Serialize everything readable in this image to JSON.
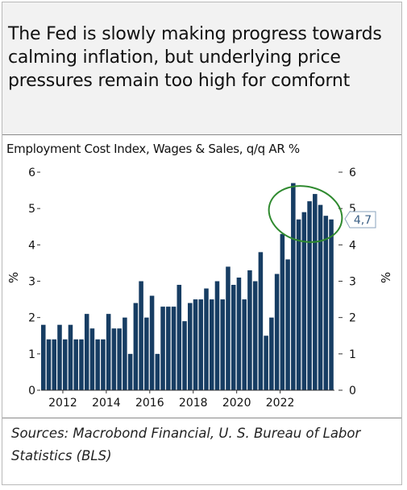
{
  "headline": "The Fed is slowly making progress towards calming inflation, but underlying price pressures remain too high for comfornt",
  "source": "Sources: Macrobond Financial, U. S. Bureau of Labor Statistics (BLS)",
  "colors": {
    "bar": "#173d63",
    "ellipse": "#2f8a2f",
    "header_bg": "#f2f2f2",
    "label_border": "#8aa3bd"
  },
  "chart_data": {
    "type": "bar",
    "title": "Employment Cost Index, Wages & Sales, q/q AR %",
    "ylabel": "%",
    "y2label": "%",
    "ylim": [
      0,
      6
    ],
    "yticks": [
      0,
      1,
      2,
      3,
      4,
      5,
      6
    ],
    "xticks": [
      "2012",
      "2014",
      "2016",
      "2018",
      "2020",
      "2022"
    ],
    "grid": false,
    "last_value_label": "4,7",
    "annotation": "green ellipse highlighting 2021-2022 bars",
    "series": [
      {
        "values": [
          1.8,
          1.4,
          1.4,
          1.8,
          1.4,
          1.8,
          1.4,
          1.4,
          2.1,
          1.7,
          1.4,
          1.4,
          2.1,
          1.7,
          1.7,
          2.0,
          1.0,
          2.4,
          3.0,
          2.0,
          2.6,
          1.0,
          2.3,
          2.3,
          2.3,
          2.9,
          1.9,
          2.4,
          2.5,
          2.5,
          2.8,
          2.5,
          3.0,
          2.5,
          3.4,
          2.9,
          3.1,
          2.5,
          3.3,
          3.0,
          3.8,
          1.5,
          2.0,
          3.2,
          4.3,
          3.6,
          5.7,
          4.7,
          4.9,
          5.2,
          5.4,
          5.1,
          4.8,
          4.7
        ]
      }
    ]
  }
}
